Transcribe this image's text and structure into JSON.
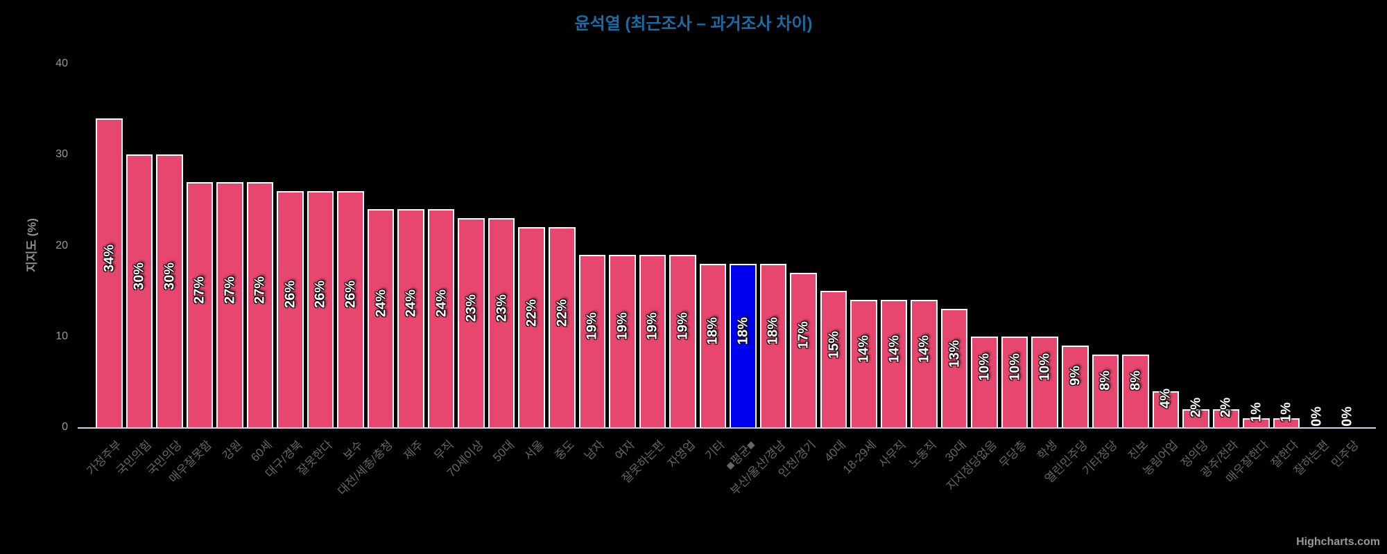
{
  "credits": {
    "label": "Highcharts.com"
  },
  "colors": {
    "background": "#000000",
    "title": "#1a6ca6",
    "bar": "#e7466f",
    "highlight": "#0000ee",
    "bar_border": "#ffffff",
    "value_label": "#ffffff",
    "x_label": "#666666",
    "y_label": "#999999",
    "axis_line": "#ccd6eb"
  },
  "chart_data": {
    "type": "bar",
    "title": "윤석열 (최근조사 – 과거조사 차이)",
    "xlabel": "",
    "ylabel": "지지도 (%)",
    "ylim": [
      0,
      40
    ],
    "yticks": [
      0,
      10,
      20,
      30,
      40
    ],
    "grid": false,
    "legend": false,
    "label_suffix": "%",
    "label_rotation": -90,
    "x_label_rotation": -45,
    "highlight_index": 21,
    "categories": [
      "가정주부",
      "국민의힘",
      "국민의당",
      "매우잘못함",
      "강원",
      "60세",
      "대구/경북",
      "잘못한다",
      "보수",
      "대전/세종/충청",
      "제주",
      "무직",
      "70세이상",
      "50대",
      "서울",
      "중도",
      "남자",
      "여자",
      "잘못하는편",
      "자영업",
      "기타",
      "■평균■",
      "부산/울산/경남",
      "인천/경기",
      "40대",
      "18-29세",
      "사무직",
      "노동직",
      "30대",
      "지지정당없음",
      "무당층",
      "학생",
      "열린민주당",
      "기타정당",
      "진보",
      "농림어업",
      "정의당",
      "광주/전라",
      "매우잘한다",
      "잘한다",
      "잘하는편",
      "민주당"
    ],
    "values": [
      34,
      30,
      30,
      27,
      27,
      27,
      26,
      26,
      26,
      24,
      24,
      24,
      23,
      23,
      22,
      22,
      19,
      19,
      19,
      19,
      18,
      18,
      18,
      17,
      15,
      14,
      14,
      14,
      13,
      10,
      10,
      10,
      9,
      8,
      8,
      4,
      2,
      2,
      1,
      1,
      0,
      0
    ]
  }
}
